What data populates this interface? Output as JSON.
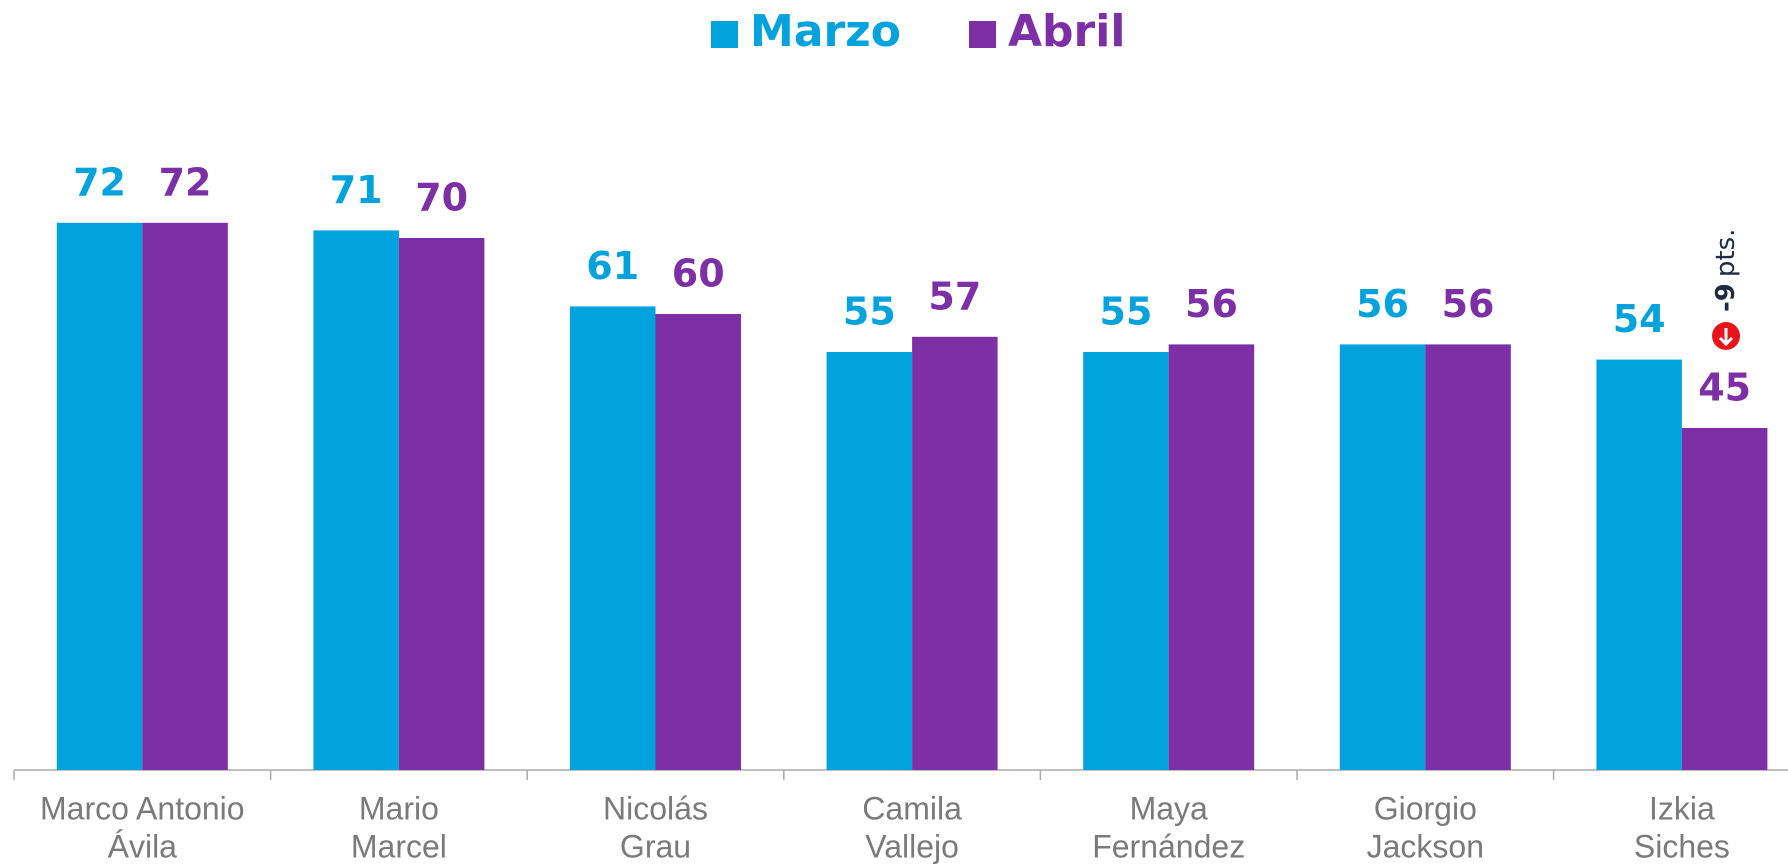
{
  "chart_data": {
    "type": "bar",
    "categories": [
      [
        "Marco Antonio",
        "Ávila"
      ],
      [
        "Mario",
        "Marcel"
      ],
      [
        "Nicolás",
        "Grau"
      ],
      [
        "Camila",
        "Vallejo"
      ],
      [
        "Maya",
        "Fernández"
      ],
      [
        "Giorgio",
        "Jackson"
      ],
      [
        "Izkia",
        "Siches"
      ]
    ],
    "series": [
      {
        "name": "Marzo",
        "color": "#02a2dd",
        "values": [
          72,
          71,
          61,
          55,
          55,
          56,
          54
        ]
      },
      {
        "name": "Abril",
        "color": "#7d2fa5",
        "values": [
          72,
          70,
          60,
          57,
          56,
          56,
          45
        ]
      }
    ],
    "ylim": [
      0,
      80
    ],
    "legend": "top",
    "annotation": {
      "change": "-9",
      "unit": "pts."
    }
  }
}
